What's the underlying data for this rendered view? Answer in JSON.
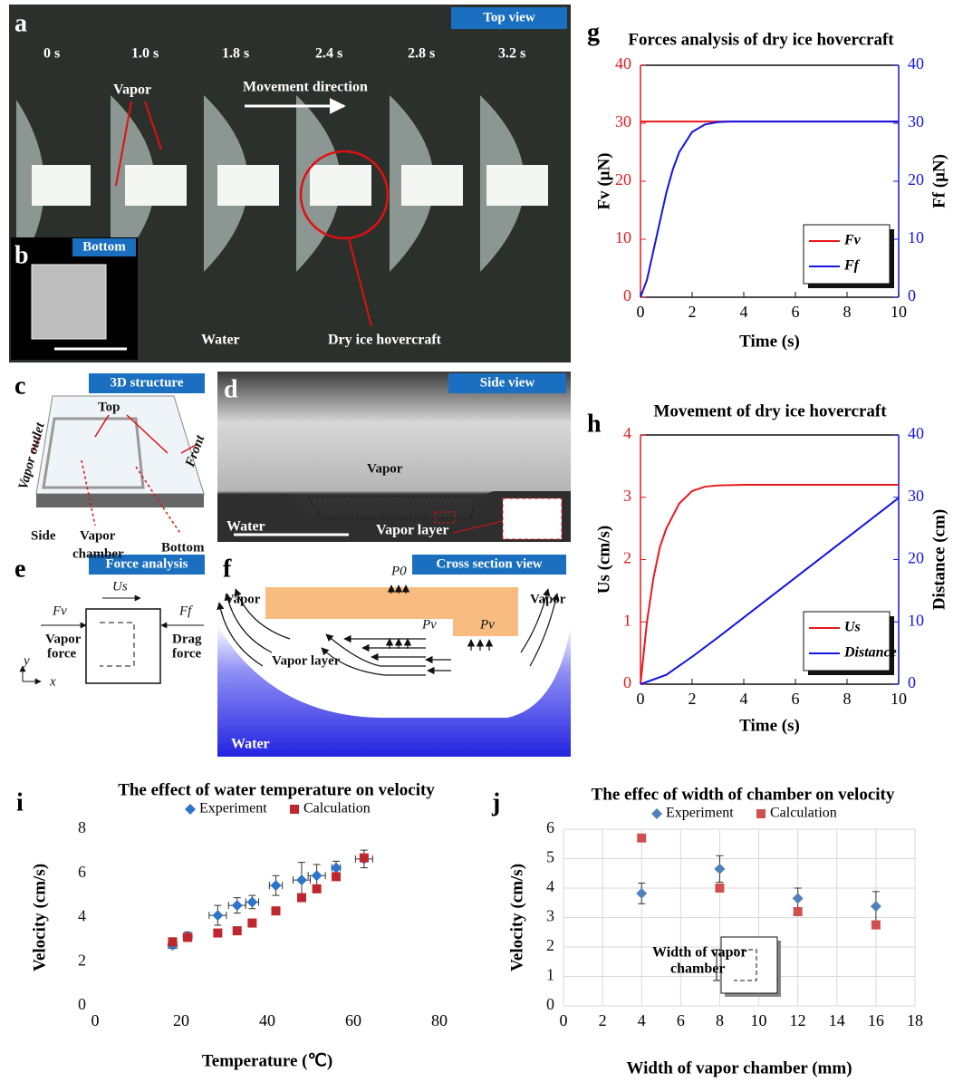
{
  "panels": {
    "a": {
      "label": "a",
      "view": "Top view",
      "times": [
        "0 s",
        "1.0 s",
        "1.8 s",
        "2.4 s",
        "2.8 s",
        "3.2 s"
      ],
      "vapor": "Vapor",
      "direction": "Movement direction",
      "water": "Water",
      "hovercraft": "Dry ice hovercraft"
    },
    "b": {
      "label": "b",
      "view": "Bottom"
    },
    "c": {
      "label": "c",
      "view": "3D structure",
      "top": "Top",
      "outlet": "Vapor outlet",
      "front": "Front",
      "side": "Side",
      "chamber": [
        "Vapor",
        "chamber"
      ],
      "bottom": "Bottom"
    },
    "d": {
      "label": "d",
      "view": "Side view",
      "vapor": "Vapor",
      "water": "Water",
      "layer": "Vapor layer"
    },
    "e": {
      "label": "e",
      "view": "Force analysis",
      "us": "Us",
      "fv": "Fv",
      "vapor_force": [
        "Vapor",
        "force"
      ],
      "ff": "Ff",
      "drag_force": [
        "Drag",
        "force"
      ],
      "y": "y",
      "x": "x"
    },
    "f": {
      "label": "f",
      "view": "Cross section view",
      "vapor": [
        "Vapor",
        "Vapor"
      ],
      "p0": "P0",
      "pv": [
        "Pv",
        "Pv"
      ],
      "layer": "Vapor layer",
      "water": "Water"
    }
  },
  "chart_data": [
    {
      "type": "line",
      "label": "g",
      "title": "Forces analysis of dry ice hovercraft",
      "xlabel": "Time (s)",
      "ylabel": "Fv (μN)",
      "y2label": "Ff (μN)",
      "xlim": [
        0,
        10
      ],
      "xticks": [
        0,
        2,
        4,
        6,
        8,
        10
      ],
      "ylim": [
        0,
        40
      ],
      "yticks": [
        0,
        10,
        20,
        30,
        40
      ],
      "y2lim": [
        0,
        40
      ],
      "y2ticks": [
        0,
        10,
        20,
        30,
        40
      ],
      "frame": true,
      "legend": "lower right",
      "series": [
        {
          "name": "Fv",
          "color": "#e8191c",
          "x": [
            0,
            10
          ],
          "values": [
            30.3,
            30.3
          ]
        },
        {
          "name": "Ff",
          "color": "#1414e6",
          "axis": "y2",
          "x": [
            0,
            0.25,
            0.5,
            0.75,
            1,
            1.25,
            1.5,
            2,
            2.5,
            3,
            3.5,
            4,
            5,
            6,
            7,
            8,
            9,
            10
          ],
          "values": [
            0,
            3,
            8,
            13,
            18,
            22,
            25,
            28.5,
            29.8,
            30.2,
            30.3,
            30.3,
            30.3,
            30.3,
            30.3,
            30.3,
            30.3,
            30.3
          ]
        }
      ]
    },
    {
      "type": "line",
      "label": "h",
      "title": "Movement of dry ice hovercraft",
      "xlabel": "Time (s)",
      "ylabel": "Us (cm/s)",
      "y2label": "Distance (cm)",
      "xlim": [
        0,
        10
      ],
      "xticks": [
        0,
        2,
        4,
        6,
        8,
        10
      ],
      "ylim": [
        0,
        4
      ],
      "yticks": [
        0,
        1,
        2,
        3,
        4
      ],
      "y2lim": [
        0,
        40
      ],
      "y2ticks": [
        0,
        10,
        20,
        30,
        40
      ],
      "frame": true,
      "legend": "lower right",
      "series": [
        {
          "name": "Us",
          "color": "#e8191c",
          "x": [
            0,
            0.25,
            0.5,
            0.75,
            1,
            1.5,
            2,
            2.5,
            3,
            4,
            5,
            6,
            7,
            8,
            9,
            10
          ],
          "values": [
            0,
            1.0,
            1.7,
            2.2,
            2.5,
            2.9,
            3.1,
            3.17,
            3.19,
            3.2,
            3.2,
            3.2,
            3.2,
            3.2,
            3.2,
            3.2
          ]
        },
        {
          "name": "Distance",
          "color": "#1414e6",
          "axis": "y2",
          "x": [
            0,
            1,
            2,
            3,
            4,
            5,
            6,
            7,
            8,
            9,
            10
          ],
          "values": [
            0,
            1.5,
            4.4,
            7.5,
            10.7,
            13.9,
            17.1,
            20.3,
            23.5,
            26.7,
            29.9
          ]
        }
      ]
    },
    {
      "type": "scatter",
      "label": "i",
      "title": "The effect of water temperature on velocity",
      "xlabel": "Temperature (℃)",
      "ylabel": "Velocity (cm/s)",
      "xlim": [
        0,
        80
      ],
      "xticks": [
        0,
        20,
        40,
        60,
        80
      ],
      "ylim": [
        0,
        8
      ],
      "yticks": [
        0,
        2,
        4,
        6,
        8
      ],
      "legend": "upper center",
      "series": [
        {
          "name": "Experiment",
          "color": "#2e74c8",
          "marker": "diamond",
          "x": [
            18,
            21.5,
            28.5,
            33,
            36.5,
            42,
            48,
            51.5,
            56,
            62.5
          ],
          "values": [
            2.75,
            3.15,
            4.1,
            4.55,
            4.7,
            5.45,
            5.7,
            5.9,
            6.25,
            6.65
          ],
          "yerr": [
            0.15,
            0.2,
            0.45,
            0.35,
            0.3,
            0.45,
            0.8,
            0.5,
            0.3,
            0.4
          ],
          "xerr": [
            1,
            1,
            2,
            2,
            1.5,
            1.5,
            2,
            2,
            1,
            2
          ]
        },
        {
          "name": "Calculation",
          "color": "#c0272d",
          "marker": "square",
          "x": [
            18,
            21.5,
            28.5,
            33,
            36.5,
            42,
            48,
            51.5,
            56,
            62.5
          ],
          "values": [
            2.9,
            3.1,
            3.3,
            3.4,
            3.75,
            4.3,
            4.9,
            5.3,
            5.85,
            6.7
          ]
        }
      ]
    },
    {
      "type": "scatter",
      "label": "j",
      "title": "The effec of width of chamber on velocity",
      "xlabel": "Width of vapor chamber (mm)",
      "ylabel": "Velocity (cm/s)",
      "xlim": [
        0,
        18
      ],
      "xticks": [
        0,
        2,
        4,
        6,
        8,
        10,
        12,
        14,
        16,
        18
      ],
      "ylim": [
        0,
        6
      ],
      "yticks": [
        0,
        1,
        2,
        3,
        4,
        5,
        6
      ],
      "grid": true,
      "legend": "upper center",
      "inset_text": [
        "Width of vapor",
        "chamber"
      ],
      "series": [
        {
          "name": "Experiment",
          "color": "#4f81bd",
          "marker": "diamond",
          "x": [
            4,
            8,
            12,
            16
          ],
          "values": [
            3.82,
            4.65,
            3.65,
            3.38
          ],
          "yerr": [
            0.35,
            0.45,
            0.35,
            0.5
          ]
        },
        {
          "name": "Calculation",
          "color": "#d0504f",
          "marker": "square",
          "x": [
            4,
            8,
            12,
            16
          ],
          "values": [
            5.7,
            4.0,
            3.2,
            2.75
          ]
        }
      ]
    }
  ]
}
